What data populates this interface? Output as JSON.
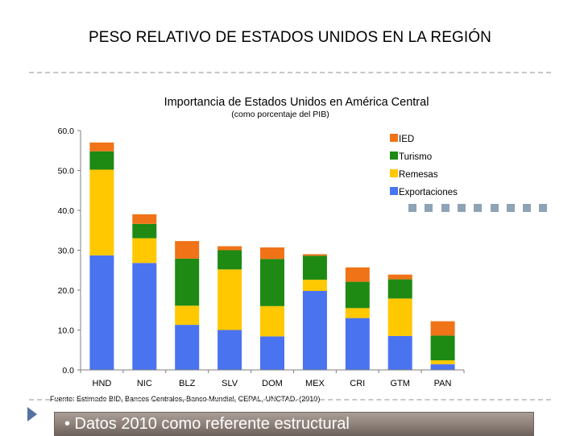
{
  "slide_title": "PESO RELATIVO DE ESTADOS UNIDOS EN LA REGIÓN",
  "bullet": "• Datos 2010 como referente estructural",
  "chart_data": {
    "type": "bar",
    "stacked": true,
    "title": "Importancia de Estados Unidos en América Central",
    "subtitle": "(como porcentaje del PIB)",
    "xlabel": "",
    "ylabel": "",
    "ylim": [
      0,
      60
    ],
    "y_ticks": [
      "0.0",
      "10.0",
      "20.0",
      "30.0",
      "40.0",
      "50.0",
      "60.0"
    ],
    "categories": [
      "HND",
      "NIC",
      "BLZ",
      "SLV",
      "DOM",
      "MEX",
      "CRI",
      "GTM",
      "PAN"
    ],
    "series": [
      {
        "name": "Exportaciones",
        "color": "#4a73f0",
        "values": [
          28.7,
          26.8,
          11.3,
          10.0,
          8.4,
          19.8,
          13.0,
          8.5,
          1.4
        ]
      },
      {
        "name": "Remesas",
        "color": "#ffc800",
        "values": [
          21.5,
          6.2,
          4.8,
          15.2,
          7.6,
          2.8,
          2.5,
          9.4,
          1.0
        ]
      },
      {
        "name": "Turismo",
        "color": "#1e8a14",
        "values": [
          4.6,
          3.6,
          11.8,
          4.8,
          11.8,
          6.0,
          6.6,
          4.8,
          6.2
        ]
      },
      {
        "name": "IED",
        "color": "#f07318",
        "values": [
          2.2,
          2.4,
          4.4,
          1.0,
          2.9,
          0.4,
          3.6,
          1.2,
          3.6
        ]
      }
    ],
    "legend_order": [
      "IED",
      "Turismo",
      "Remesas",
      "Exportaciones"
    ],
    "legend_position": "top-right",
    "source": "Fuente: Estimado BID, Bancos Centrales, Banco Mundial, CEPAL, UNCTAD. (2010)"
  }
}
